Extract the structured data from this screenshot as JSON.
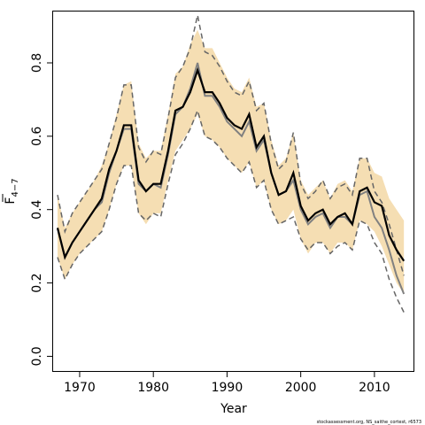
{
  "chart_data": {
    "type": "line",
    "xlabel": "Year",
    "ylabel": "F",
    "ylabel_subscript": "4−7",
    "xlim": [
      1966.4,
      2015.3
    ],
    "ylim": [
      -0.04,
      0.94
    ],
    "xticks": [
      1970,
      1980,
      1990,
      2000,
      2010
    ],
    "yticks": [
      0.0,
      0.2,
      0.4,
      0.6,
      0.8
    ],
    "grid": false,
    "legend": "none",
    "credit": "stockassessment.org, NS_saithe_cortest, r6573",
    "colors": {
      "band": "#f5deb3",
      "estimate": "#000000",
      "comparison": "#808080",
      "bounds": "#666666"
    },
    "years": [
      1967,
      1968,
      1969,
      1970,
      1971,
      1972,
      1973,
      1974,
      1975,
      1976,
      1977,
      1978,
      1979,
      1980,
      1981,
      1982,
      1983,
      1984,
      1985,
      1986,
      1987,
      1988,
      1989,
      1990,
      1991,
      1992,
      1993,
      1994,
      1995,
      1996,
      1997,
      1998,
      1999,
      2000,
      2001,
      2002,
      2003,
      2004,
      2005,
      2006,
      2007,
      2008,
      2009,
      2010,
      2011,
      2012,
      2013,
      2014
    ],
    "series": [
      {
        "role": "band-upper",
        "values": [
          0.44,
          0.35,
          0.39,
          0.42,
          0.45,
          0.48,
          0.52,
          0.58,
          0.66,
          0.74,
          0.75,
          0.58,
          0.54,
          0.56,
          0.56,
          0.66,
          0.77,
          0.79,
          0.85,
          0.89,
          0.84,
          0.84,
          0.8,
          0.76,
          0.73,
          0.72,
          0.76,
          0.68,
          0.69,
          0.59,
          0.52,
          0.54,
          0.61,
          0.48,
          0.44,
          0.46,
          0.48,
          0.43,
          0.47,
          0.48,
          0.45,
          0.54,
          0.54,
          0.5,
          0.49,
          0.43,
          0.4,
          0.37
        ]
      },
      {
        "role": "band-lower",
        "values": [
          0.27,
          0.21,
          0.25,
          0.28,
          0.3,
          0.32,
          0.34,
          0.4,
          0.47,
          0.52,
          0.52,
          0.39,
          0.36,
          0.39,
          0.39,
          0.48,
          0.56,
          0.59,
          0.62,
          0.66,
          0.6,
          0.59,
          0.57,
          0.54,
          0.52,
          0.5,
          0.53,
          0.46,
          0.48,
          0.4,
          0.36,
          0.37,
          0.4,
          0.32,
          0.28,
          0.31,
          0.31,
          0.28,
          0.31,
          0.31,
          0.29,
          0.37,
          0.36,
          0.34,
          0.3,
          0.25,
          0.2,
          0.17
        ]
      },
      {
        "role": "estimate",
        "values": [
          0.35,
          0.27,
          0.31,
          0.34,
          0.37,
          0.4,
          0.43,
          0.51,
          0.56,
          0.63,
          0.63,
          0.48,
          0.45,
          0.47,
          0.47,
          0.56,
          0.67,
          0.68,
          0.72,
          0.78,
          0.72,
          0.72,
          0.69,
          0.65,
          0.63,
          0.62,
          0.66,
          0.57,
          0.6,
          0.5,
          0.44,
          0.45,
          0.5,
          0.41,
          0.37,
          0.39,
          0.4,
          0.36,
          0.38,
          0.39,
          0.36,
          0.45,
          0.46,
          0.42,
          0.41,
          0.33,
          0.29,
          0.26
        ]
      },
      {
        "role": "comparison",
        "values": [
          0.35,
          0.27,
          0.31,
          0.34,
          0.37,
          0.4,
          0.42,
          0.5,
          0.56,
          0.62,
          0.62,
          0.47,
          0.45,
          0.47,
          0.46,
          0.55,
          0.66,
          0.68,
          0.73,
          0.8,
          0.71,
          0.71,
          0.68,
          0.64,
          0.62,
          0.6,
          0.64,
          0.56,
          0.59,
          0.5,
          0.44,
          0.45,
          0.48,
          0.4,
          0.36,
          0.38,
          0.39,
          0.35,
          0.38,
          0.38,
          0.36,
          0.44,
          0.45,
          0.38,
          0.35,
          0.29,
          0.22,
          0.17
        ]
      },
      {
        "role": "upper-bound",
        "values": [
          0.44,
          0.34,
          0.39,
          0.42,
          0.45,
          0.48,
          0.51,
          0.58,
          0.65,
          0.74,
          0.74,
          0.57,
          0.53,
          0.56,
          0.55,
          0.65,
          0.76,
          0.79,
          0.84,
          0.93,
          0.83,
          0.82,
          0.79,
          0.75,
          0.72,
          0.71,
          0.75,
          0.67,
          0.69,
          0.58,
          0.51,
          0.53,
          0.61,
          0.47,
          0.43,
          0.45,
          0.48,
          0.43,
          0.46,
          0.47,
          0.44,
          0.54,
          0.54,
          0.45,
          0.42,
          0.36,
          0.29,
          0.22
        ]
      },
      {
        "role": "lower-bound",
        "values": [
          0.27,
          0.21,
          0.25,
          0.28,
          0.3,
          0.32,
          0.34,
          0.4,
          0.47,
          0.52,
          0.52,
          0.39,
          0.37,
          0.39,
          0.38,
          0.47,
          0.55,
          0.58,
          0.62,
          0.67,
          0.6,
          0.59,
          0.57,
          0.54,
          0.52,
          0.5,
          0.53,
          0.46,
          0.48,
          0.4,
          0.36,
          0.37,
          0.38,
          0.32,
          0.29,
          0.31,
          0.31,
          0.28,
          0.3,
          0.31,
          0.29,
          0.37,
          0.36,
          0.31,
          0.28,
          0.21,
          0.16,
          0.12
        ]
      }
    ]
  }
}
